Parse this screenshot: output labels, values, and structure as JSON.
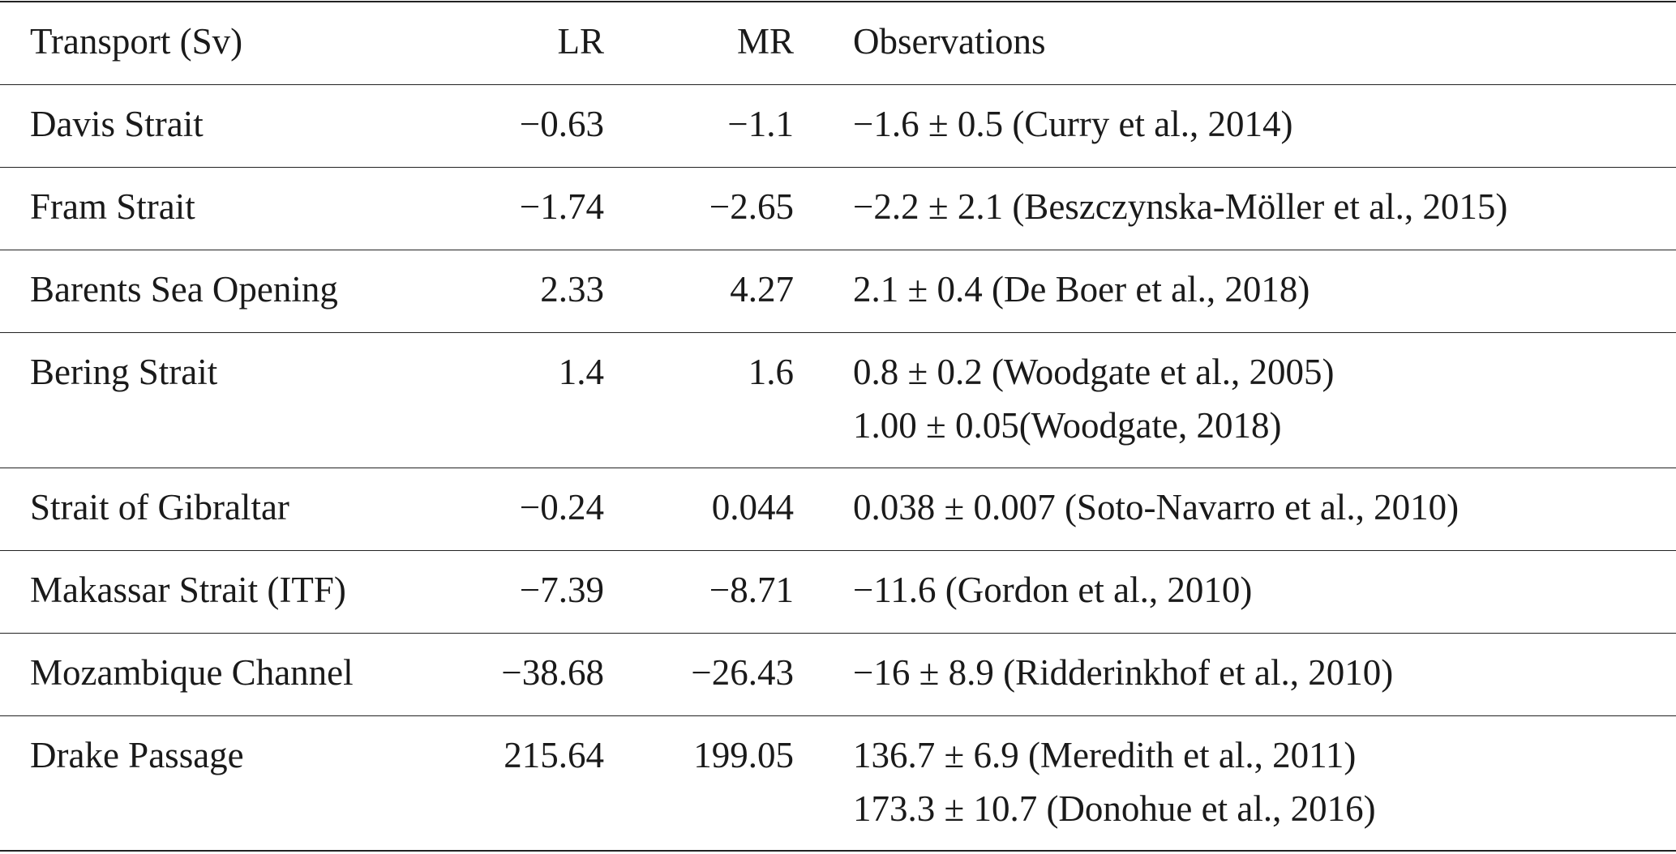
{
  "table": {
    "header": [
      "Transport (Sv)",
      "LR",
      "MR",
      "Observations"
    ],
    "rows": [
      [
        "Davis Strait",
        "−0.63",
        "−1.1",
        [
          "−1.6 ± 0.5 (Curry et al., 2014)"
        ]
      ],
      [
        "Fram Strait",
        "−1.74",
        "−2.65",
        [
          "−2.2 ± 2.1 (Beszczynska-Möller et al., 2015)"
        ]
      ],
      [
        "Barents Sea Opening",
        "2.33",
        "4.27",
        [
          "2.1 ± 0.4 (De Boer et al., 2018)"
        ]
      ],
      [
        "Bering Strait",
        "1.4",
        "1.6",
        [
          "0.8 ± 0.2 (Woodgate et al., 2005)",
          "1.00 ± 0.05(Woodgate, 2018)"
        ]
      ],
      [
        "Strait of Gibraltar",
        "−0.24",
        "0.044",
        [
          "0.038 ± 0.007 (Soto-Navarro et al., 2010)"
        ]
      ],
      [
        "Makassar Strait (ITF)",
        "−7.39",
        "−8.71",
        [
          "−11.6 (Gordon et al., 2010)"
        ]
      ],
      [
        "Mozambique Channel",
        "−38.68",
        "−26.43",
        [
          "−16 ± 8.9 (Ridderinkhof et al., 2010)"
        ]
      ],
      [
        "Drake Passage",
        "215.64",
        "199.05",
        [
          "136.7 ± 6.9 (Meredith et al., 2011)",
          "173.3 ± 10.7 (Donohue et al., 2016)"
        ]
      ]
    ]
  }
}
